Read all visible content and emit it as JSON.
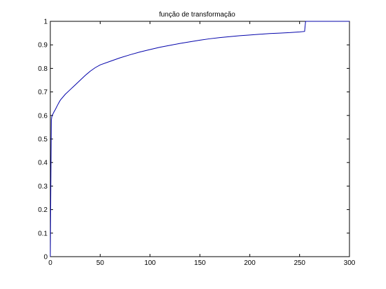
{
  "chart_data": {
    "type": "line",
    "title": "função de transformação",
    "xlabel": "",
    "ylabel": "",
    "xlim": [
      0,
      300
    ],
    "ylim": [
      0,
      1
    ],
    "xticks": [
      0,
      50,
      100,
      150,
      200,
      250,
      300
    ],
    "yticks": [
      0,
      0.1,
      0.2,
      0.3,
      0.4,
      0.5,
      0.6,
      0.7,
      0.8,
      0.9,
      1
    ],
    "xtick_labels": [
      "0",
      "50",
      "100",
      "150",
      "200",
      "250",
      "300"
    ],
    "ytick_labels": [
      "0",
      "0.1",
      "0.2",
      "0.3",
      "0.4",
      "0.5",
      "0.6",
      "0.7",
      "0.8",
      "0.9",
      "1"
    ],
    "grid": false,
    "series": [
      {
        "color": "#0000aa",
        "x": [
          0,
          0.5,
          1,
          1.5,
          2,
          3,
          5,
          8,
          10,
          15,
          20,
          25,
          30,
          35,
          40,
          45,
          50,
          60,
          70,
          80,
          90,
          100,
          110,
          120,
          130,
          140,
          150,
          160,
          170,
          180,
          190,
          200,
          210,
          220,
          230,
          240,
          250,
          255,
          256,
          300
        ],
        "y": [
          0,
          0.3,
          0.58,
          0.595,
          0.6,
          0.61,
          0.625,
          0.65,
          0.665,
          0.69,
          0.71,
          0.73,
          0.75,
          0.77,
          0.788,
          0.803,
          0.815,
          0.83,
          0.845,
          0.858,
          0.87,
          0.88,
          0.89,
          0.898,
          0.906,
          0.913,
          0.92,
          0.926,
          0.931,
          0.935,
          0.939,
          0.942,
          0.945,
          0.948,
          0.95,
          0.952,
          0.955,
          0.957,
          1.0,
          1.0
        ]
      }
    ]
  }
}
